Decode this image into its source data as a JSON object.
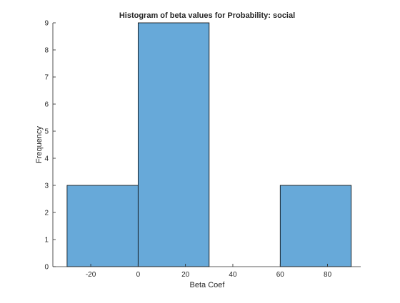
{
  "chart_data": {
    "type": "bar",
    "subtype": "histogram",
    "title": "Histogram of beta values for Probability: social",
    "xlabel": "Beta Coef",
    "ylabel": "Frequency",
    "bins": [
      {
        "start": -30,
        "end": 0,
        "count": 3
      },
      {
        "start": 0,
        "end": 30,
        "count": 9
      },
      {
        "start": 30,
        "end": 60,
        "count": 0
      },
      {
        "start": 60,
        "end": 90,
        "count": 3
      }
    ],
    "xlim": [
      -36,
      94
    ],
    "ylim": [
      0,
      9
    ],
    "xticks": [
      -20,
      0,
      20,
      40,
      60,
      80
    ],
    "yticks": [
      0,
      1,
      2,
      3,
      4,
      5,
      6,
      7,
      8,
      9
    ],
    "bar_color": "#67a9d9",
    "edge_color": "#000000",
    "grid": false,
    "legend": null
  }
}
